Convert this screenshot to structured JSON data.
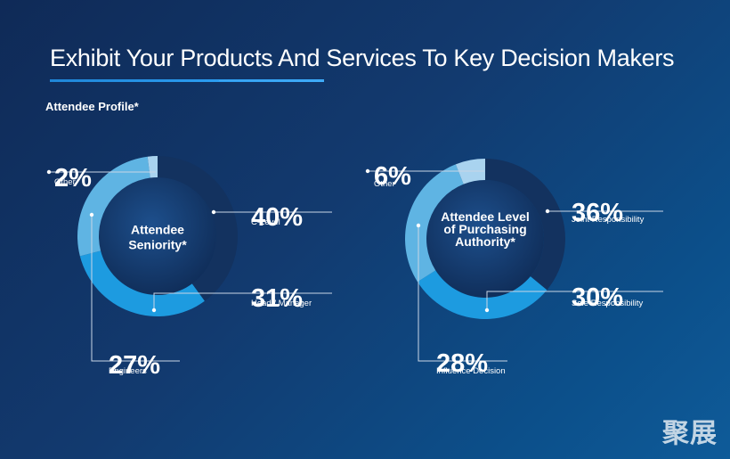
{
  "header": {
    "title": "Exhibit Your Products And Services To Key Decision Makers",
    "section_label": "Attendee Profile*"
  },
  "colors": {
    "background": "#123a6f",
    "underline": "#2b9cf0",
    "connector": "#c9d6e6"
  },
  "watermark": "聚展",
  "chart_data": [
    {
      "type": "pie",
      "center_label": [
        "Attendee",
        "Seniority*"
      ],
      "slices": [
        {
          "label": "C-Level",
          "percent_label": "40%",
          "value": 40,
          "color": "#13325f"
        },
        {
          "label": "Head / Manager",
          "percent_label": "31%",
          "value": 31,
          "color": "#1d9be0"
        },
        {
          "label": "Engineers",
          "percent_label": "27%",
          "value": 27,
          "color": "#5fb4e3"
        },
        {
          "label": "Other",
          "percent_label": "2%",
          "value": 2,
          "color": "#a9d3ef"
        }
      ]
    },
    {
      "type": "pie",
      "center_label": [
        "Attendee Level",
        "of Purchasing",
        "Authority*"
      ],
      "slices": [
        {
          "label": "Joint Responsibility",
          "percent_label": "36%",
          "value": 36,
          "color": "#13325f"
        },
        {
          "label": "Sole Responsibility",
          "percent_label": "30%",
          "value": 30,
          "color": "#1d9be0"
        },
        {
          "label": "Influence Decision",
          "percent_label": "28%",
          "value": 28,
          "color": "#5fb4e3"
        },
        {
          "label": "Other",
          "percent_label": "6%",
          "value": 6,
          "color": "#a9d3ef"
        }
      ]
    }
  ]
}
